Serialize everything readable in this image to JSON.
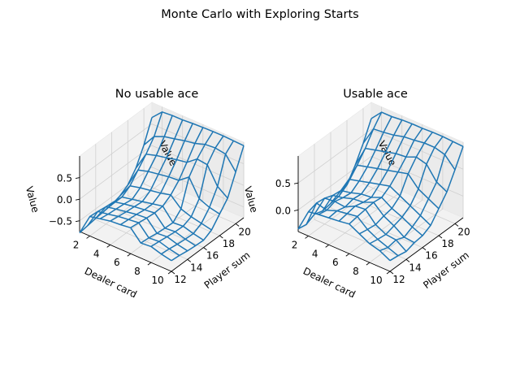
{
  "figure": {
    "title": "Monte Carlo with Exploring Starts"
  },
  "colors": {
    "wire": "#1f77b4",
    "pane_floor": "#f2f2f2",
    "pane_left": "#ebebeb",
    "pane_back": "#f2f2f2",
    "grid": "#d0d0d0"
  },
  "chart_data": [
    {
      "type": "surface",
      "style": "wireframe",
      "title": "No usable ace",
      "xlabel": "Player sum",
      "ylabel": "Dealer card",
      "zlabel": "Value",
      "x_ticks": [
        "12",
        "14",
        "16",
        "18",
        "20"
      ],
      "y_ticks": [
        "2",
        "4",
        "6",
        "8",
        "10"
      ],
      "z_ticks": [
        "−0.5",
        "0.0",
        "0.5"
      ],
      "x_tick_values": [
        12,
        14,
        16,
        18,
        20
      ],
      "y_tick_values": [
        2,
        4,
        6,
        8,
        10
      ],
      "z_tick_values": [
        -0.5,
        0.0,
        0.5
      ],
      "xlim": [
        12,
        21
      ],
      "ylim": [
        1,
        10
      ],
      "zlim": [
        -0.75,
        1.0
      ],
      "x": [
        12,
        13,
        14,
        15,
        16,
        17,
        18,
        19,
        20,
        21
      ],
      "y": [
        1,
        2,
        3,
        4,
        5,
        6,
        7,
        8,
        9,
        10
      ],
      "z": [
        [
          -0.78,
          -0.75,
          -0.72,
          -0.7,
          -0.68,
          -0.62,
          -0.5,
          -0.25,
          0.15,
          0.65
        ],
        [
          -0.3,
          -0.32,
          -0.35,
          -0.37,
          -0.4,
          -0.28,
          -0.05,
          0.18,
          0.45,
          0.88
        ],
        [
          -0.25,
          -0.28,
          -0.3,
          -0.32,
          -0.35,
          -0.22,
          0.02,
          0.25,
          0.55,
          0.9
        ],
        [
          -0.2,
          -0.23,
          -0.26,
          -0.28,
          -0.3,
          -0.18,
          0.06,
          0.3,
          0.6,
          0.9
        ],
        [
          -0.18,
          -0.2,
          -0.22,
          -0.25,
          -0.25,
          -0.14,
          0.1,
          0.36,
          0.66,
          0.92
        ],
        [
          -0.15,
          -0.17,
          -0.2,
          -0.22,
          -0.2,
          -0.08,
          0.12,
          0.4,
          0.7,
          0.93
        ],
        [
          -0.4,
          -0.42,
          -0.45,
          -0.47,
          -0.48,
          -0.3,
          0.3,
          0.58,
          0.78,
          0.94
        ],
        [
          -0.38,
          -0.4,
          -0.43,
          -0.45,
          -0.46,
          -0.38,
          -0.1,
          0.55,
          0.8,
          0.94
        ],
        [
          -0.45,
          -0.47,
          -0.5,
          -0.52,
          -0.53,
          -0.43,
          -0.2,
          0.15,
          0.76,
          0.93
        ],
        [
          -0.5,
          -0.52,
          -0.55,
          -0.57,
          -0.58,
          -0.48,
          -0.25,
          -0.02,
          0.45,
          0.92
        ]
      ]
    },
    {
      "type": "surface",
      "style": "wireframe",
      "title": "Usable ace",
      "xlabel": "Player sum",
      "ylabel": "Dealer card",
      "zlabel": "Value",
      "x_ticks": [
        "12",
        "14",
        "16",
        "18",
        "20"
      ],
      "y_ticks": [
        "2",
        "4",
        "6",
        "8",
        "10"
      ],
      "z_ticks": [
        "0.0",
        "0.5"
      ],
      "x_tick_values": [
        12,
        14,
        16,
        18,
        20
      ],
      "y_tick_values": [
        2,
        4,
        6,
        8,
        10
      ],
      "z_tick_values": [
        0.0,
        0.5
      ],
      "xlim": [
        12,
        21
      ],
      "ylim": [
        1,
        10
      ],
      "zlim": [
        -0.4,
        1.0
      ],
      "x": [
        12,
        13,
        14,
        15,
        16,
        17,
        18,
        19,
        20,
        21
      ],
      "y": [
        1,
        2,
        3,
        4,
        5,
        6,
        7,
        8,
        9,
        10
      ],
      "z": [
        [
          -0.35,
          -0.38,
          -0.3,
          -0.35,
          -0.32,
          -0.3,
          -0.2,
          0.05,
          0.35,
          0.7
        ],
        [
          0.05,
          0.1,
          0.08,
          0.02,
          0.0,
          0.1,
          0.25,
          0.45,
          0.7,
          0.9
        ],
        [
          0.08,
          0.05,
          0.1,
          0.06,
          0.04,
          0.15,
          0.3,
          0.5,
          0.72,
          0.9
        ],
        [
          0.1,
          0.12,
          0.08,
          0.12,
          0.1,
          0.2,
          0.35,
          0.55,
          0.75,
          0.92
        ],
        [
          0.12,
          0.15,
          0.18,
          0.14,
          0.12,
          0.25,
          0.4,
          0.6,
          0.8,
          0.93
        ],
        [
          0.15,
          0.18,
          0.2,
          0.22,
          0.2,
          0.3,
          0.45,
          0.62,
          0.82,
          0.93
        ],
        [
          0.05,
          0.02,
          0.0,
          0.05,
          0.08,
          0.2,
          0.5,
          0.7,
          0.85,
          0.94
        ],
        [
          -0.05,
          -0.08,
          -0.1,
          -0.05,
          0.0,
          0.1,
          0.3,
          0.65,
          0.85,
          0.94
        ],
        [
          -0.1,
          -0.15,
          -0.12,
          -0.18,
          -0.1,
          0.0,
          0.2,
          0.4,
          0.8,
          0.93
        ],
        [
          -0.2,
          -0.22,
          -0.25,
          -0.2,
          -0.18,
          -0.1,
          0.1,
          0.3,
          0.6,
          0.92
        ]
      ]
    }
  ]
}
